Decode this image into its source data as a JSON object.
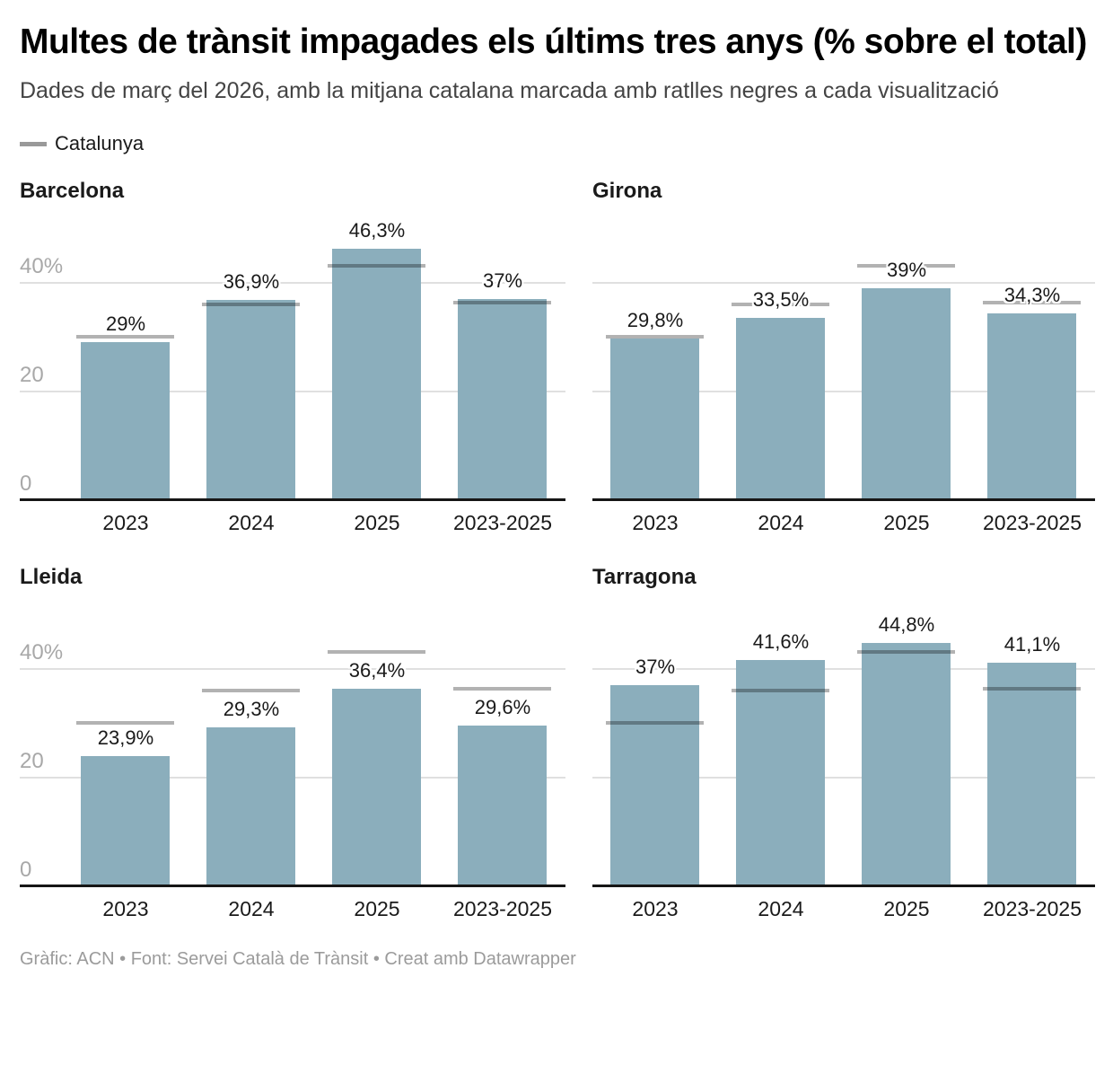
{
  "header": {
    "title": "Multes de trànsit impagades els últims tres anys (% sobre el total)",
    "subtitle": "Dades de març del 2026, amb la mitjana catalana marcada amb ratlles negres a cada visualització",
    "legend_label": "Catalunya"
  },
  "colors": {
    "bar": "#8BAEBC",
    "average_line": "rgba(0,0,0,0.3)",
    "legend_swatch": "#999999",
    "grid": "#e0e0e0",
    "axis_text": "#a8a8a8",
    "baseline": "#161616",
    "text": "#1a1a1a",
    "footer_text": "#9b9b9b"
  },
  "chart_data": {
    "type": "bar",
    "small_multiples": true,
    "categories": [
      "2023",
      "2024",
      "2025",
      "2023-2025"
    ],
    "ylim": [
      0,
      50
    ],
    "grid": "horizontal",
    "yticks": [
      {
        "value": 0,
        "label": "0"
      },
      {
        "value": 20,
        "label": "20"
      },
      {
        "value": 40,
        "label": "40%"
      }
    ],
    "average_series": {
      "name": "Catalunya",
      "values": [
        30.1,
        36.0,
        43.1,
        36.4
      ]
    },
    "charts": [
      {
        "title": "Barcelona",
        "show_y_axis": true,
        "values": [
          29,
          36.9,
          46.3,
          37
        ],
        "labels": [
          "29%",
          "36,9%",
          "46,3%",
          "37%"
        ]
      },
      {
        "title": "Girona",
        "show_y_axis": false,
        "values": [
          29.8,
          33.5,
          39,
          34.3
        ],
        "labels": [
          "29,8%",
          "33,5%",
          "39%",
          "34,3%"
        ]
      },
      {
        "title": "Lleida",
        "show_y_axis": true,
        "values": [
          23.9,
          29.3,
          36.4,
          29.6
        ],
        "labels": [
          "23,9%",
          "29,3%",
          "36,4%",
          "29,6%"
        ]
      },
      {
        "title": "Tarragona",
        "show_y_axis": false,
        "values": [
          37,
          41.6,
          44.8,
          41.1
        ],
        "labels": [
          "37%",
          "41,6%",
          "44,8%",
          "41,1%"
        ]
      }
    ]
  },
  "footer": {
    "text": "Gràfic: ACN • Font: Servei Català de Trànsit • Creat amb Datawrapper"
  }
}
